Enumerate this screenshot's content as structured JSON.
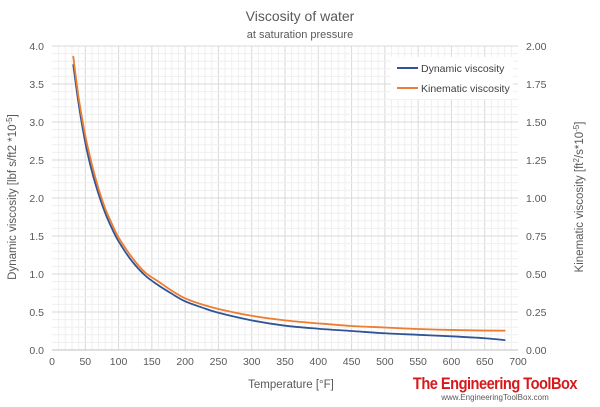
{
  "chart_data": {
    "type": "line",
    "title": "Viscosity of water",
    "subtitle": "at saturation pressure",
    "xlabel": "Temperature [°F]",
    "ylabel_left": "Dynamic viscosity [lbf s/ft2 *10",
    "ylabel_left_sup": "-5",
    "ylabel_left_end": "]",
    "ylabel_right": "Kinematic viscosity  [ft",
    "ylabel_right_sup1": "2",
    "ylabel_right_mid": "/s*10",
    "ylabel_right_sup2": "-5",
    "ylabel_right_end": "]",
    "xlim": [
      0,
      700
    ],
    "ylim_left": [
      0,
      4.0
    ],
    "ylim_right": [
      0,
      2.0
    ],
    "x_ticks": [
      0,
      50,
      100,
      150,
      200,
      250,
      300,
      350,
      400,
      450,
      500,
      550,
      600,
      650,
      700
    ],
    "y_left_ticks": [
      "0.0",
      "0.5",
      "1.0",
      "1.5",
      "2.0",
      "2.5",
      "3.0",
      "3.5",
      "4.0"
    ],
    "y_right_ticks": [
      "0.00",
      "0.25",
      "0.50",
      "0.75",
      "1.00",
      "1.25",
      "1.50",
      "1.75",
      "2.00"
    ],
    "grid": true,
    "legend_position": "top-right",
    "series": [
      {
        "name": "Dynamic viscosity",
        "axis": "left",
        "color": "#2f5597",
        "x": [
          32,
          40,
          50,
          60,
          70,
          80,
          90,
          100,
          120,
          140,
          160,
          180,
          200,
          225,
          250,
          300,
          350,
          400,
          450,
          500,
          550,
          600,
          650,
          680
        ],
        "y": [
          3.75,
          3.24,
          2.73,
          2.35,
          2.05,
          1.8,
          1.6,
          1.43,
          1.17,
          0.98,
          0.85,
          0.74,
          0.64,
          0.56,
          0.49,
          0.39,
          0.32,
          0.28,
          0.25,
          0.22,
          0.2,
          0.18,
          0.155,
          0.13
        ]
      },
      {
        "name": "Kinematic viscosity",
        "axis": "right",
        "color": "#ed7d31",
        "x": [
          32,
          40,
          50,
          60,
          70,
          80,
          90,
          100,
          120,
          140,
          160,
          180,
          200,
          225,
          250,
          300,
          350,
          400,
          450,
          500,
          550,
          600,
          650,
          680
        ],
        "y": [
          1.93,
          1.66,
          1.41,
          1.22,
          1.06,
          0.93,
          0.83,
          0.74,
          0.61,
          0.51,
          0.45,
          0.39,
          0.34,
          0.3,
          0.27,
          0.225,
          0.195,
          0.175,
          0.158,
          0.148,
          0.138,
          0.132,
          0.128,
          0.127
        ]
      }
    ]
  },
  "branding": {
    "name": "The Engineering ToolBox",
    "url": "www.EngineeringToolBox.com"
  }
}
